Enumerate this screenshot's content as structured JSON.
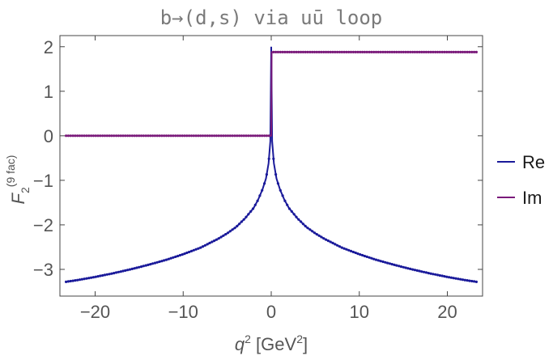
{
  "chart_data": {
    "type": "line",
    "title": "b→(d,s) via uū loop",
    "xlabel": {
      "base": "q",
      "sup": "2",
      "unit_open": " [GeV",
      "unit_sup": "2",
      "unit_close": "]"
    },
    "ylabel": {
      "base": "F",
      "sub": "2",
      "sup": "(9 fac)"
    },
    "xlim": [
      -24,
      24
    ],
    "ylim": [
      -3.6,
      2.25
    ],
    "x_ticks": [
      -20,
      -10,
      0,
      10,
      20
    ],
    "x_tick_labels": [
      "−20",
      "−10",
      "0",
      "10",
      "20"
    ],
    "y_ticks": [
      2,
      1,
      0,
      -1,
      -2,
      -3
    ],
    "y_tick_labels": [
      "2",
      "1",
      "0",
      "−1",
      "−2",
      "−3"
    ],
    "grid": false,
    "legend_position": "right",
    "series": [
      {
        "name": "Re",
        "color": "#1a1a9a",
        "line_x": [
          -23.3,
          -22,
          -20,
          -18,
          -16,
          -14,
          -12,
          -10,
          -8,
          -6,
          -5,
          -4,
          -3,
          -2,
          -1.5,
          -1,
          -0.6,
          -0.3,
          -0.1,
          0,
          0.1,
          0.3,
          0.6,
          1,
          1.5,
          2,
          3,
          4,
          5,
          6,
          8,
          10,
          12,
          14,
          16,
          18,
          20,
          22,
          23.3
        ],
        "line_y": [
          -3.28,
          -3.24,
          -3.17,
          -3.09,
          -3.0,
          -2.9,
          -2.79,
          -2.66,
          -2.51,
          -2.31,
          -2.19,
          -2.05,
          -1.86,
          -1.62,
          -1.44,
          -1.21,
          -0.96,
          -0.62,
          -0.12,
          2.0,
          -0.12,
          -0.62,
          -0.96,
          -1.21,
          -1.44,
          -1.62,
          -1.86,
          -2.05,
          -2.19,
          -2.31,
          -2.51,
          -2.66,
          -2.79,
          -2.9,
          -3.0,
          -3.09,
          -3.17,
          -3.24,
          -3.28
        ]
      },
      {
        "name": "Im",
        "color": "#7a1a7a",
        "line_x": [
          -23.3,
          -0.05,
          0,
          0.05,
          23.3
        ],
        "line_y": [
          0,
          0,
          0,
          1.88,
          1.88
        ]
      }
    ]
  }
}
